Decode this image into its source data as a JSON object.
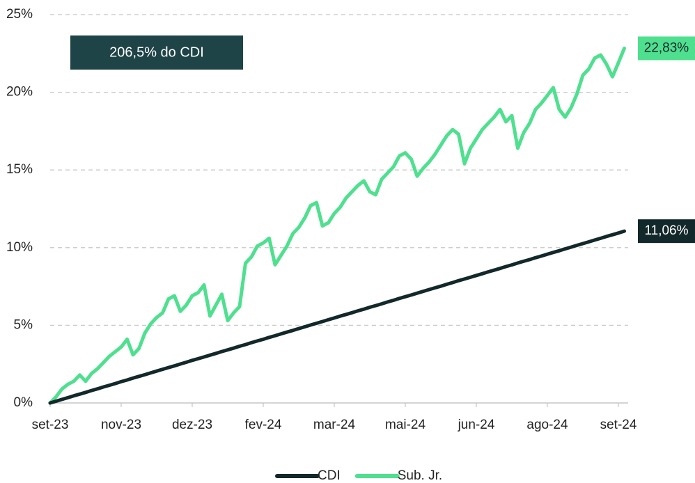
{
  "chart_data": {
    "type": "line",
    "annotation": "206,5% do CDI",
    "categories": [
      "set-23",
      null,
      null,
      null,
      null,
      null,
      null,
      null,
      null,
      null,
      null,
      null,
      "nov-23",
      null,
      null,
      null,
      null,
      null,
      null,
      null,
      null,
      null,
      null,
      null,
      "dez-23",
      null,
      null,
      null,
      null,
      null,
      null,
      null,
      null,
      null,
      null,
      null,
      "fev-24",
      null,
      null,
      null,
      null,
      null,
      null,
      null,
      null,
      null,
      null,
      null,
      "mar-24",
      null,
      null,
      null,
      null,
      null,
      null,
      null,
      null,
      null,
      null,
      null,
      "mai-24",
      null,
      null,
      null,
      null,
      null,
      null,
      null,
      null,
      null,
      null,
      null,
      "jun-24",
      null,
      null,
      null,
      null,
      null,
      null,
      null,
      null,
      null,
      null,
      null,
      "ago-24",
      null,
      null,
      null,
      null,
      null,
      null,
      null,
      null,
      null,
      null,
      null,
      "set-24",
      null
    ],
    "series": [
      {
        "name": "CDI",
        "color": "#13282a",
        "end_label": "11,06%",
        "values": [
          0,
          0.11,
          0.23,
          0.34,
          0.46,
          0.57,
          0.68,
          0.8,
          0.91,
          1.03,
          1.14,
          1.25,
          1.37,
          1.48,
          1.6,
          1.71,
          1.82,
          1.94,
          2.05,
          2.17,
          2.28,
          2.39,
          2.51,
          2.62,
          2.74,
          2.85,
          2.96,
          3.08,
          3.19,
          3.31,
          3.42,
          3.53,
          3.65,
          3.76,
          3.88,
          3.99,
          4.1,
          4.22,
          4.33,
          4.45,
          4.56,
          4.67,
          4.79,
          4.9,
          5.02,
          5.13,
          5.24,
          5.36,
          5.47,
          5.59,
          5.7,
          5.81,
          5.93,
          6.04,
          6.16,
          6.27,
          6.38,
          6.5,
          6.61,
          6.73,
          6.84,
          6.95,
          7.07,
          7.18,
          7.3,
          7.41,
          7.52,
          7.64,
          7.75,
          7.87,
          7.98,
          8.09,
          8.21,
          8.32,
          8.44,
          8.55,
          8.66,
          8.78,
          8.89,
          9.01,
          9.12,
          9.23,
          9.35,
          9.46,
          9.58,
          9.69,
          9.8,
          9.92,
          10.03,
          10.15,
          10.26,
          10.37,
          10.49,
          10.6,
          10.72,
          10.83,
          10.94,
          11.06
        ]
      },
      {
        "name": "Sub. Jr.",
        "color": "#4fe08f",
        "end_label": "22,83%",
        "values": [
          0,
          0.4,
          0.9,
          1.2,
          1.4,
          1.8,
          1.4,
          1.9,
          2.2,
          2.6,
          3.0,
          3.3,
          3.6,
          4.1,
          3.1,
          3.5,
          4.5,
          5.1,
          5.5,
          5.8,
          6.7,
          6.9,
          5.9,
          6.3,
          6.9,
          7.1,
          7.6,
          5.6,
          6.3,
          7.0,
          5.3,
          5.8,
          6.2,
          9.0,
          9.4,
          10.1,
          10.3,
          10.6,
          8.9,
          9.5,
          10.1,
          10.9,
          11.3,
          11.9,
          12.7,
          12.9,
          11.4,
          11.6,
          12.2,
          12.6,
          13.2,
          13.6,
          14.0,
          14.3,
          13.6,
          13.4,
          14.4,
          14.8,
          15.2,
          15.9,
          16.1,
          15.7,
          14.6,
          15.1,
          15.5,
          16.0,
          16.6,
          17.2,
          17.6,
          17.3,
          15.4,
          16.4,
          17.0,
          17.6,
          18.0,
          18.4,
          18.9,
          18.1,
          18.5,
          16.4,
          17.4,
          18.0,
          18.9,
          19.3,
          19.8,
          20.3,
          18.9,
          18.4,
          19.0,
          19.9,
          21.1,
          21.5,
          22.2,
          22.4,
          21.8,
          21.0,
          21.9,
          22.83
        ]
      }
    ],
    "ylim": [
      0,
      25
    ],
    "yticks": [
      {
        "value": 0,
        "label": "0%"
      },
      {
        "value": 5,
        "label": "5%"
      },
      {
        "value": 10,
        "label": "10%"
      },
      {
        "value": 15,
        "label": "15%"
      },
      {
        "value": 20,
        "label": "20%"
      },
      {
        "value": 25,
        "label": "25%"
      }
    ],
    "grid": true,
    "legend": "bottom"
  }
}
